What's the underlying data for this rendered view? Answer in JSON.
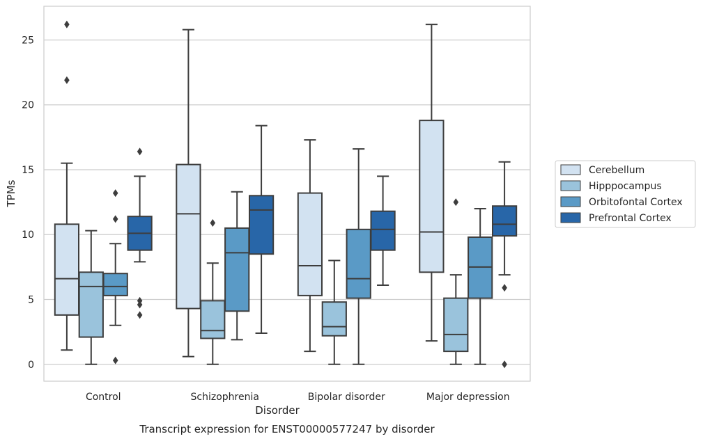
{
  "chart_data": {
    "type": "box",
    "title": "",
    "caption": "Transcript expression for ENST00000577247 by disorder",
    "xlabel": "Disorder",
    "ylabel": "TPMs",
    "ylim": [
      -1.3,
      27.6
    ],
    "yticks": [
      0,
      5,
      10,
      15,
      20,
      25
    ],
    "grid": true,
    "legend_position": "right",
    "categories": [
      "Control",
      "Schizophrenia",
      "Bipolar disorder",
      "Major depression"
    ],
    "series": [
      {
        "name": "Cerebellum",
        "color": "#d2e2f1",
        "boxes": [
          {
            "whisker_low": 1.1,
            "q1": 3.8,
            "median": 6.6,
            "q3": 10.8,
            "whisker_high": 15.5,
            "outliers": [
              21.9,
              26.2
            ]
          },
          {
            "whisker_low": 0.6,
            "q1": 4.3,
            "median": 11.6,
            "q3": 15.4,
            "whisker_high": 25.8,
            "outliers": []
          },
          {
            "whisker_low": 1.0,
            "q1": 5.3,
            "median": 7.6,
            "q3": 13.2,
            "whisker_high": 17.3,
            "outliers": []
          },
          {
            "whisker_low": 1.8,
            "q1": 7.1,
            "median": 10.2,
            "q3": 18.8,
            "whisker_high": 26.2,
            "outliers": []
          }
        ]
      },
      {
        "name": "Hipppocampus",
        "color": "#9ac3dc",
        "boxes": [
          {
            "whisker_low": 0.0,
            "q1": 2.1,
            "median": 6.0,
            "q3": 7.1,
            "whisker_high": 10.3,
            "outliers": []
          },
          {
            "whisker_low": 0.0,
            "q1": 2.0,
            "median": 2.6,
            "q3": 4.9,
            "whisker_high": 7.8,
            "outliers": [
              10.9
            ]
          },
          {
            "whisker_low": 0.0,
            "q1": 2.2,
            "median": 2.9,
            "q3": 4.8,
            "whisker_high": 8.0,
            "outliers": []
          },
          {
            "whisker_low": 0.0,
            "q1": 1.0,
            "median": 2.3,
            "q3": 5.1,
            "whisker_high": 6.9,
            "outliers": [
              12.5
            ]
          }
        ]
      },
      {
        "name": "Orbitofontal Cortex",
        "color": "#5a9ac6",
        "boxes": [
          {
            "whisker_low": 3.0,
            "q1": 5.3,
            "median": 6.0,
            "q3": 7.0,
            "whisker_high": 9.3,
            "outliers": [
              0.3,
              11.2,
              13.2
            ]
          },
          {
            "whisker_low": 1.9,
            "q1": 4.1,
            "median": 8.6,
            "q3": 10.5,
            "whisker_high": 13.3,
            "outliers": []
          },
          {
            "whisker_low": 0.0,
            "q1": 5.1,
            "median": 6.6,
            "q3": 10.4,
            "whisker_high": 16.6,
            "outliers": []
          },
          {
            "whisker_low": 0.0,
            "q1": 5.1,
            "median": 7.5,
            "q3": 9.8,
            "whisker_high": 12.0,
            "outliers": []
          }
        ]
      },
      {
        "name": "Prefrontal Cortex",
        "color": "#2866a8",
        "boxes": [
          {
            "whisker_low": 7.9,
            "q1": 8.8,
            "median": 10.1,
            "q3": 11.4,
            "whisker_high": 14.5,
            "outliers": [
              3.8,
              4.6,
              4.9,
              16.4
            ]
          },
          {
            "whisker_low": 2.4,
            "q1": 8.5,
            "median": 11.9,
            "q3": 13.0,
            "whisker_high": 18.4,
            "outliers": []
          },
          {
            "whisker_low": 6.1,
            "q1": 8.8,
            "median": 10.4,
            "q3": 11.8,
            "whisker_high": 14.5,
            "outliers": []
          },
          {
            "whisker_low": 6.9,
            "q1": 9.9,
            "median": 10.8,
            "q3": 12.2,
            "whisker_high": 15.6,
            "outliers": [
              0.0,
              5.9
            ]
          }
        ]
      }
    ]
  }
}
